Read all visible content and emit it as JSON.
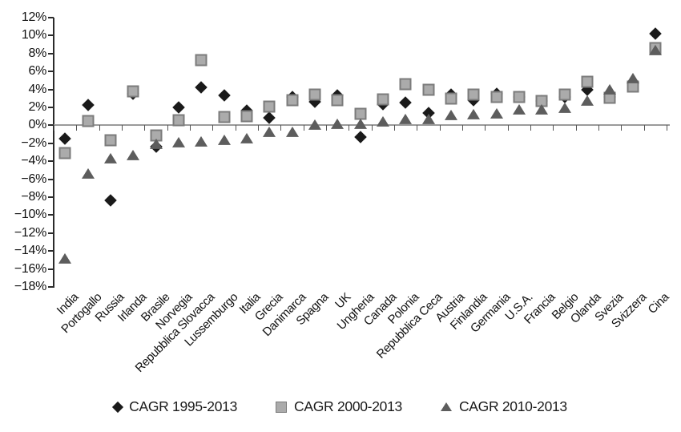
{
  "chart_data": {
    "type": "scatter",
    "title": "",
    "xlabel": "",
    "ylabel": "",
    "categories": [
      "India",
      "Portogallo",
      "Russia",
      "Irlanda",
      "Brasile",
      "Norvegia",
      "Repubblica Slovacca",
      "Lussemburgo",
      "Italia",
      "Grecia",
      "Danimarca",
      "Spagna",
      "UK",
      "Ungheria",
      "Canada",
      "Polonia",
      "Repubblica Ceca",
      "Austria",
      "Finlandia",
      "Germania",
      "U.S.A.",
      "Francia",
      "Belgio",
      "Olanda",
      "Svezia",
      "Svizzera",
      "Cina"
    ],
    "series": [
      {
        "name": "CAGR 1995-2013",
        "marker": "diamond",
        "color": "#1a1a1a",
        "values": [
          -1.5,
          2.3,
          -8.4,
          3.5,
          -2.4,
          2.0,
          4.2,
          3.3,
          1.6,
          0.8,
          3.2,
          2.6,
          3.3,
          -1.3,
          2.4,
          2.5,
          1.4,
          3.4,
          2.8,
          3.5,
          3.2,
          2.7,
          3.2,
          4.0,
          3.2,
          4.7,
          10.2
        ]
      },
      {
        "name": "CAGR 2000-2013",
        "marker": "square",
        "color": "#ababab",
        "border_color": "#7b7b7b",
        "values": [
          -3.1,
          0.5,
          -1.7,
          3.8,
          -1.1,
          0.6,
          7.3,
          0.9,
          1.0,
          2.1,
          2.8,
          3.4,
          2.8,
          1.3,
          2.9,
          4.6,
          4.0,
          3.0,
          3.4,
          3.2,
          3.2,
          2.7,
          3.4,
          4.9,
          3.1,
          4.3,
          8.6
        ]
      },
      {
        "name": "CAGR 2010-2013",
        "marker": "triangle",
        "color": "#5d5d5d",
        "values": [
          -14.9,
          -5.4,
          -3.7,
          -3.4,
          -2.1,
          -1.9,
          -1.8,
          -1.7,
          -1.5,
          -0.8,
          -0.8,
          0.0,
          0.1,
          0.1,
          0.4,
          0.7,
          0.7,
          1.1,
          1.2,
          1.3,
          1.7,
          1.7,
          1.9,
          2.7,
          4.0,
          5.2,
          8.3
        ]
      }
    ],
    "ylim": [
      -18,
      12
    ],
    "ytick_step": 2,
    "ytick_labels": [
      "12%",
      "10%",
      "8%",
      "6%",
      "4%",
      "2%",
      "0%",
      "−2%",
      "−4%",
      "−6%",
      "−8%",
      "−10%",
      "−12%",
      "−14%",
      "−16%",
      "−18%"
    ],
    "grid": false,
    "legend_position": "bottom"
  },
  "legend": {
    "items": [
      "CAGR 1995-2013",
      "CAGR 2000-2013",
      "CAGR 2010-2013"
    ]
  },
  "colors": {
    "background": "#ffffff",
    "axis": "#2b2b2b",
    "zero_line": "#9b9b9b",
    "text": "#111111",
    "series1": "#1a1a1a",
    "series2": "#ababab",
    "series2_border": "#7b7b7b",
    "series3": "#5d5d5d"
  }
}
